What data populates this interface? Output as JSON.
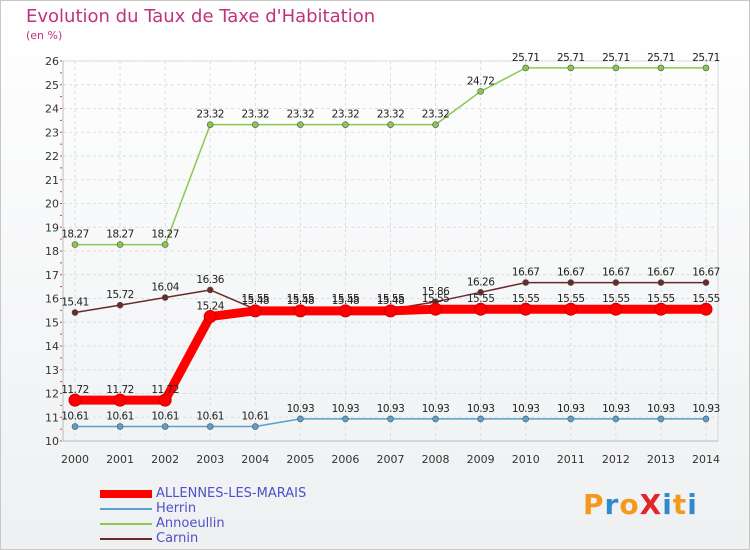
{
  "chart_data": {
    "type": "line",
    "title": "Evolution du Taux de Taxe d'Habitation",
    "unit_label": "(en %)",
    "x": [
      "2000",
      "2001",
      "2002",
      "2003",
      "2004",
      "2005",
      "2006",
      "2007",
      "2008",
      "2009",
      "2010",
      "2011",
      "2012",
      "2013",
      "2014"
    ],
    "ylim": [
      10,
      26
    ],
    "yticks": [
      "10",
      "11",
      "12",
      "13",
      "14",
      "15",
      "16",
      "17",
      "18",
      "19",
      "20",
      "21",
      "22",
      "23",
      "24",
      "25",
      "26"
    ],
    "grid": true,
    "series": [
      {
        "name": "Carnin",
        "color": "#6b2a2a",
        "values": [
          15.41,
          15.72,
          16.04,
          16.36,
          15.55,
          15.55,
          15.55,
          15.55,
          15.86,
          16.26,
          16.67,
          16.67,
          16.67,
          16.67,
          16.67
        ],
        "labels": [
          "15.41",
          "15.72",
          "16.04",
          "16.36",
          "15.55",
          "15.55",
          "15.55",
          "15.55",
          "15.86",
          "16.26",
          "16.67",
          "16.67",
          "16.67",
          "16.67",
          "16.67"
        ]
      },
      {
        "name": "Annoeullin",
        "color": "#8bc850",
        "values": [
          18.27,
          18.27,
          18.27,
          23.32,
          23.32,
          23.32,
          23.32,
          23.32,
          23.32,
          24.72,
          25.71,
          25.71,
          25.71,
          25.71,
          25.71
        ],
        "labels": [
          "18.27",
          "18.27",
          "18.27",
          "23.32",
          "23.32",
          "23.32",
          "23.32",
          "23.32",
          "23.32",
          "24.72",
          "25.71",
          "25.71",
          "25.71",
          "25.71",
          "25.71"
        ]
      },
      {
        "name": "Herrin",
        "color": "#5a9fd0",
        "values": [
          10.61,
          10.61,
          10.61,
          10.61,
          10.61,
          10.93,
          10.93,
          10.93,
          10.93,
          10.93,
          10.93,
          10.93,
          10.93,
          10.93,
          10.93
        ],
        "labels": [
          "10.61",
          "10.61",
          "10.61",
          "10.61",
          "10.61",
          "10.93",
          "10.93",
          "10.93",
          "10.93",
          "10.93",
          "10.93",
          "10.93",
          "10.93",
          "10.93",
          "10.93"
        ]
      },
      {
        "name": "ALLENNES-LES-MARAIS",
        "color": "#ff0000",
        "values": [
          11.72,
          11.72,
          11.72,
          15.24,
          15.48,
          15.48,
          15.48,
          15.48,
          15.55,
          15.55,
          15.55,
          15.55,
          15.55,
          15.55,
          15.55
        ],
        "labels": [
          "11.72",
          "11.72",
          "11.72",
          "15.24",
          "15.48",
          "15.48",
          "15.48",
          "15.48",
          "15.55",
          "15.55",
          "15.55",
          "15.55",
          "15.55",
          "15.55",
          "15.55"
        ]
      }
    ],
    "legend": [
      "ALLENNES-LES-MARAIS",
      "Herrin",
      "Annoeullin",
      "Carnin"
    ]
  },
  "logo": {
    "text": "ProXiti",
    "colors": [
      "#f39a1e",
      "#2e8bd0",
      "#f39a1e",
      "#e0262a",
      "#2e8bd0",
      "#f39a1e",
      "#2e8bd0"
    ]
  }
}
